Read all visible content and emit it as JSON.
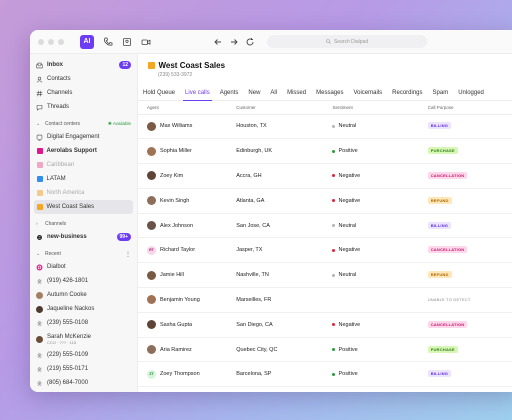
{
  "app": {
    "logo": "AI",
    "search_placeholder": "Search Dialpad"
  },
  "sidebar": {
    "top": [
      {
        "label": "Inbox",
        "icon": "inbox-icon",
        "badge": "12",
        "bold": true
      },
      {
        "label": "Contacts",
        "icon": "contacts-icon"
      },
      {
        "label": "Channels",
        "icon": "channels-icon"
      },
      {
        "label": "Threads",
        "icon": "threads-icon"
      }
    ],
    "contact_centers": {
      "heading": "Contact centers",
      "available": "Available",
      "items": [
        {
          "label": "Digital Engagement",
          "icon": "digital-engagement-icon",
          "color": ""
        },
        {
          "label": "Aerolabs Support",
          "color": "#e0168a",
          "bold": true
        },
        {
          "label": "Caribbean",
          "color": "#f1a6c3",
          "dim": true
        },
        {
          "label": "LATAM",
          "color": "#2f8ef0"
        },
        {
          "label": "North America",
          "color": "#f4c98a",
          "dim": true
        },
        {
          "label": "West Coast Sales",
          "color": "#f5a623",
          "selected": true
        }
      ]
    },
    "channels": {
      "heading": "Channels",
      "items": [
        {
          "label": "new-business",
          "badge": "99+",
          "bold": true
        }
      ]
    },
    "recent": {
      "heading": "Recent",
      "items": [
        {
          "label": "Dialbot",
          "type": "bot"
        },
        {
          "label": "(919) 426-1801",
          "type": "person"
        },
        {
          "label": "Autumn Cooke",
          "type": "photo"
        },
        {
          "label": "Jaqueline Nackos",
          "type": "photo"
        },
        {
          "label": "(239) 555-0108",
          "type": "person"
        },
        {
          "label": "Sarah McKenzie",
          "sub": "CCO · ??? · 115",
          "type": "photo"
        },
        {
          "label": "(229) 555-0109",
          "type": "person"
        },
        {
          "label": "(219) 555-0171",
          "type": "person"
        },
        {
          "label": "(805) 684-7000",
          "type": "person"
        }
      ]
    }
  },
  "header": {
    "title": "West Coast Sales",
    "phone": "(239) 533-3972",
    "accent": "#f5a623"
  },
  "tabs": [
    "Hold Queue",
    "Live calls",
    "Agents",
    "New",
    "All",
    "Missed",
    "Messages",
    "Voicemails",
    "Recordings",
    "Spam",
    "Unlogged"
  ],
  "active_tab": "Live calls",
  "table": {
    "columns": [
      "Agent",
      "Customer",
      "Sentiment",
      "Call Purpose"
    ],
    "rows": [
      {
        "agent": "Max Williams",
        "avatar": "photo",
        "customer": "Houston, TX",
        "sentiment": "Neutral",
        "purpose": "BILLING"
      },
      {
        "agent": "Sophia Miller",
        "avatar": "photo",
        "customer": "Edinburgh, UK",
        "sentiment": "Positive",
        "purpose": "PURCHASE"
      },
      {
        "agent": "Zoey Kim",
        "avatar": "photo",
        "customer": "Accra, GH",
        "sentiment": "Negative",
        "purpose": "CANCELLATION"
      },
      {
        "agent": "Kevin Singh",
        "avatar": "photo",
        "customer": "Atlanta, GA",
        "sentiment": "Negative",
        "purpose": "REFUND"
      },
      {
        "agent": "Alex Johnson",
        "avatar": "photo",
        "customer": "San Jose, CA",
        "sentiment": "Neutral",
        "purpose": "BILLING"
      },
      {
        "agent": "Richard Taylor",
        "avatar": "RT",
        "customer": "Jasper, TX",
        "sentiment": "Negative",
        "purpose": "CANCELLATION"
      },
      {
        "agent": "Jamie Hill",
        "avatar": "photo",
        "customer": "Nashville, TN",
        "sentiment": "Neutral",
        "purpose": "REFUND"
      },
      {
        "agent": "Benjamin Young",
        "avatar": "photo",
        "customer": "Marseilles, FR",
        "sentiment": "",
        "purpose": "UNABLE TO DETECT"
      },
      {
        "agent": "Sasha Gupta",
        "avatar": "photo",
        "customer": "San Diego, CA",
        "sentiment": "Negative",
        "purpose": "CANCELLATION"
      },
      {
        "agent": "Aria Ramirez",
        "avatar": "photo",
        "customer": "Quebec City, QC",
        "sentiment": "Positive",
        "purpose": "PURCHASE"
      },
      {
        "agent": "Zoey Thompson",
        "avatar": "ZT",
        "customer": "Barcelona, SP",
        "sentiment": "Positive",
        "purpose": "BILLING"
      }
    ]
  },
  "colors": {
    "accent": "#6d3cf5",
    "positive": "#2a9d3a",
    "negative": "#e0213a",
    "neutral": "#b5b5b5",
    "BILLING": [
      "#ece4ff",
      "#5b2fd6"
    ],
    "PURCHASE": [
      "#d8f7b5",
      "#2e7d1a"
    ],
    "CANCELLATION": [
      "#ffd6ea",
      "#c2186b"
    ],
    "REFUND": [
      "#ffe7b8",
      "#a86400"
    ]
  }
}
